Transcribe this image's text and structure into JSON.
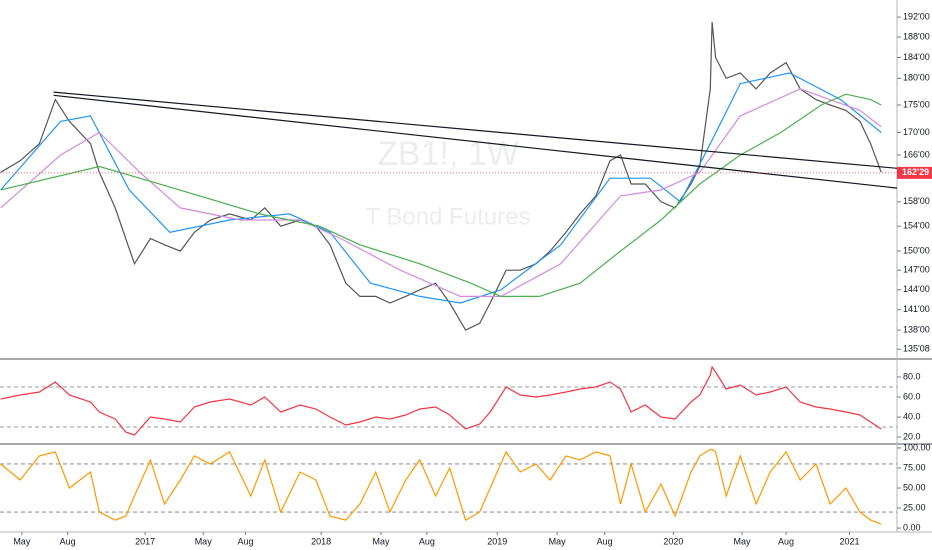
{
  "chart_data": [
    {
      "type": "line",
      "yscale": "log",
      "watermark": "ZB1!, 1W",
      "subtitle": "T Bond Futures",
      "xlim": [
        2016.176,
        2021.27
      ],
      "ylim": [
        134,
        195.5
      ],
      "yticks": [
        {
          "value": 192,
          "label": "192'00"
        },
        {
          "value": 188,
          "label": "188'00"
        },
        {
          "value": 184,
          "label": "184'00"
        },
        {
          "value": 180,
          "label": "180'00"
        },
        {
          "value": 175,
          "label": "175'00"
        },
        {
          "value": 170,
          "label": "170'00"
        },
        {
          "value": 166,
          "label": "166'00"
        },
        {
          "value": 158,
          "label": "158'00"
        },
        {
          "value": 154,
          "label": "154'00"
        },
        {
          "value": 150,
          "label": "150'00"
        },
        {
          "value": 147,
          "label": "147'00"
        },
        {
          "value": 144,
          "label": "144'00"
        },
        {
          "value": 141,
          "label": "141'00"
        },
        {
          "value": 138,
          "label": "138'00"
        },
        {
          "value": 135.25,
          "label": "135'08"
        }
      ],
      "last": {
        "value": 162.90625,
        "label": "162'29",
        "color": "#f23645"
      },
      "series": [
        {
          "color": "#555555",
          "x": [
            2016.18,
            2016.29,
            2016.4,
            2016.49,
            2016.57,
            2016.69,
            2016.74,
            2016.83,
            2016.89,
            2016.94,
            2017.03,
            2017.11,
            2017.2,
            2017.28,
            2017.37,
            2017.48,
            2017.6,
            2017.68,
            2017.77,
            2017.88,
            2017.97,
            2018.05,
            2018.14,
            2018.22,
            2018.31,
            2018.39,
            2018.48,
            2018.56,
            2018.65,
            2018.73,
            2018.82,
            2018.9,
            2018.96,
            2019.05,
            2019.13,
            2019.22,
            2019.3,
            2019.39,
            2019.47,
            2019.56,
            2019.64,
            2019.7,
            2019.76,
            2019.84,
            2019.93,
            2020.01,
            2020.1,
            2020.15,
            2020.21,
            2020.22,
            2020.24,
            2020.3,
            2020.38,
            2020.47,
            2020.55,
            2020.64,
            2020.72,
            2020.81,
            2020.89,
            2020.98,
            2021.06,
            2021.12,
            2021.18
          ],
          "values": [
            163,
            165,
            168,
            176,
            172,
            168,
            163,
            157,
            152,
            148,
            152,
            151,
            150,
            153,
            155,
            156,
            155,
            157,
            154,
            155,
            154,
            151,
            145,
            143,
            143,
            142,
            143,
            144,
            145,
            142,
            138,
            139,
            142,
            147,
            147,
            148,
            150,
            153,
            156,
            159,
            165,
            166,
            161,
            161,
            158,
            157,
            161,
            164,
            178,
            191,
            184,
            180,
            181,
            178,
            181,
            183,
            178,
            176,
            175,
            174,
            172,
            168,
            163
          ]
        },
        {
          "color": "#2196f3",
          "x": [
            2016.18,
            2016.52,
            2016.69,
            2016.91,
            2017.14,
            2017.48,
            2017.82,
            2018.05,
            2018.28,
            2018.56,
            2018.79,
            2019.02,
            2019.36,
            2019.64,
            2019.87,
            2020.04,
            2020.21,
            2020.38,
            2020.66,
            2020.95,
            2021.18
          ],
          "values": [
            160,
            172,
            173,
            160,
            153,
            155,
            156,
            153,
            145,
            143,
            142,
            144,
            151,
            162,
            162,
            158,
            168,
            179,
            181,
            176,
            170
          ]
        },
        {
          "color": "#d18be0",
          "x": [
            2016.18,
            2016.52,
            2016.74,
            2016.97,
            2017.2,
            2017.54,
            2017.88,
            2018.11,
            2018.45,
            2018.79,
            2019.02,
            2019.36,
            2019.7,
            2019.93,
            2020.15,
            2020.38,
            2020.72,
            2021.06,
            2021.18
          ],
          "values": [
            157,
            166,
            170,
            163,
            157,
            155,
            155,
            152,
            147,
            143,
            143,
            148,
            159,
            160,
            163,
            173,
            178,
            174,
            171
          ]
        },
        {
          "color": "#4caf50",
          "x": [
            2016.18,
            2016.74,
            2016.97,
            2017.31,
            2017.65,
            2017.99,
            2018.22,
            2018.56,
            2018.85,
            2019.02,
            2019.24,
            2019.47,
            2019.7,
            2019.93,
            2020.15,
            2020.38,
            2020.61,
            2020.84,
            2020.98,
            2021.12,
            2021.18
          ],
          "values": [
            160,
            164,
            162,
            159,
            156,
            154,
            151,
            148,
            145,
            143,
            143,
            145,
            150,
            155,
            161,
            166,
            170,
            175,
            177,
            176,
            175
          ]
        },
        {
          "color": "#131722",
          "x": [
            2016.48,
            2021.27
          ],
          "values": [
            177.4,
            163.7
          ]
        },
        {
          "color": "#131722",
          "x": [
            2016.48,
            2021.27
          ],
          "values": [
            176.8,
            160.3
          ]
        }
      ]
    },
    {
      "type": "line",
      "xlim": [
        2016.176,
        2021.27
      ],
      "ylim": [
        14,
        97
      ],
      "yticks": [
        {
          "value": 80,
          "label": "80.0"
        },
        {
          "value": 60,
          "label": "60.0"
        },
        {
          "value": 40,
          "label": "40.0"
        },
        {
          "value": 20,
          "label": "20.0"
        }
      ],
      "bands": [
        70,
        30
      ],
      "series": [
        {
          "color": "#f23645",
          "x": [
            2016.18,
            2016.29,
            2016.4,
            2016.49,
            2016.57,
            2016.69,
            2016.74,
            2016.83,
            2016.89,
            2016.94,
            2017.03,
            2017.11,
            2017.2,
            2017.28,
            2017.37,
            2017.48,
            2017.6,
            2017.68,
            2017.77,
            2017.88,
            2017.97,
            2018.05,
            2018.14,
            2018.22,
            2018.31,
            2018.39,
            2018.48,
            2018.56,
            2018.65,
            2018.73,
            2018.82,
            2018.9,
            2018.96,
            2019.05,
            2019.13,
            2019.22,
            2019.3,
            2019.39,
            2019.47,
            2019.56,
            2019.64,
            2019.7,
            2019.76,
            2019.84,
            2019.93,
            2020.01,
            2020.1,
            2020.15,
            2020.21,
            2020.22,
            2020.24,
            2020.3,
            2020.38,
            2020.47,
            2020.55,
            2020.64,
            2020.72,
            2020.81,
            2020.89,
            2020.98,
            2021.06,
            2021.12,
            2021.18
          ],
          "values": [
            58,
            62,
            65,
            75,
            62,
            55,
            45,
            38,
            25,
            22,
            40,
            38,
            35,
            50,
            55,
            58,
            52,
            60,
            45,
            52,
            48,
            40,
            32,
            35,
            40,
            38,
            42,
            48,
            50,
            42,
            28,
            33,
            45,
            70,
            62,
            60,
            62,
            65,
            68,
            70,
            75,
            68,
            45,
            52,
            40,
            38,
            55,
            62,
            82,
            90,
            85,
            68,
            72,
            62,
            65,
            70,
            55,
            50,
            48,
            45,
            42,
            35,
            28
          ]
        }
      ]
    },
    {
      "type": "line",
      "xlim": [
        2016.176,
        2021.27
      ],
      "ylim": [
        -2.4,
        102.4
      ],
      "yticks": [
        {
          "value": 100,
          "label": "100.00"
        },
        {
          "value": 75,
          "label": "75.00"
        },
        {
          "value": 50,
          "label": "50.00"
        },
        {
          "value": 25,
          "label": "25.00"
        },
        {
          "value": 0,
          "label": "0.00"
        }
      ],
      "bands": [
        80,
        20
      ],
      "xticks": [
        {
          "value": 2016.3,
          "label": "May"
        },
        {
          "value": 2016.56,
          "label": "Aug"
        },
        2017,
        {
          "value": 2017.33,
          "label": "May"
        },
        {
          "value": 2017.57,
          "label": "Aug"
        },
        2018,
        {
          "value": 2018.34,
          "label": "May"
        },
        {
          "value": 2018.6,
          "label": "Aug"
        },
        2019,
        {
          "value": 2019.34,
          "label": "May"
        },
        {
          "value": 2019.61,
          "label": "Aug"
        },
        2020,
        {
          "value": 2020.39,
          "label": "May"
        },
        {
          "value": 2020.64,
          "label": "Aug"
        },
        2021
      ],
      "series": [
        {
          "color": "#ff9800",
          "x": [
            2016.18,
            2016.29,
            2016.4,
            2016.49,
            2016.57,
            2016.69,
            2016.74,
            2016.83,
            2016.89,
            2016.94,
            2017.03,
            2017.11,
            2017.2,
            2017.28,
            2017.37,
            2017.48,
            2017.6,
            2017.68,
            2017.77,
            2017.88,
            2017.97,
            2018.05,
            2018.14,
            2018.22,
            2018.31,
            2018.39,
            2018.48,
            2018.56,
            2018.65,
            2018.73,
            2018.82,
            2018.9,
            2018.96,
            2019.05,
            2019.13,
            2019.22,
            2019.3,
            2019.39,
            2019.47,
            2019.56,
            2019.64,
            2019.7,
            2019.76,
            2019.84,
            2019.93,
            2020.01,
            2020.1,
            2020.15,
            2020.21,
            2020.22,
            2020.24,
            2020.3,
            2020.38,
            2020.47,
            2020.55,
            2020.64,
            2020.72,
            2020.81,
            2020.89,
            2020.98,
            2021.06,
            2021.12,
            2021.18
          ],
          "values": [
            80,
            60,
            90,
            95,
            50,
            70,
            20,
            10,
            15,
            40,
            85,
            30,
            60,
            90,
            80,
            95,
            40,
            85,
            20,
            70,
            60,
            15,
            10,
            30,
            70,
            20,
            60,
            85,
            40,
            75,
            10,
            20,
            50,
            95,
            70,
            80,
            60,
            90,
            85,
            95,
            90,
            30,
            80,
            20,
            55,
            15,
            70,
            90,
            98,
            98,
            95,
            40,
            90,
            30,
            70,
            95,
            60,
            80,
            30,
            50,
            20,
            10,
            5
          ]
        }
      ]
    }
  ]
}
